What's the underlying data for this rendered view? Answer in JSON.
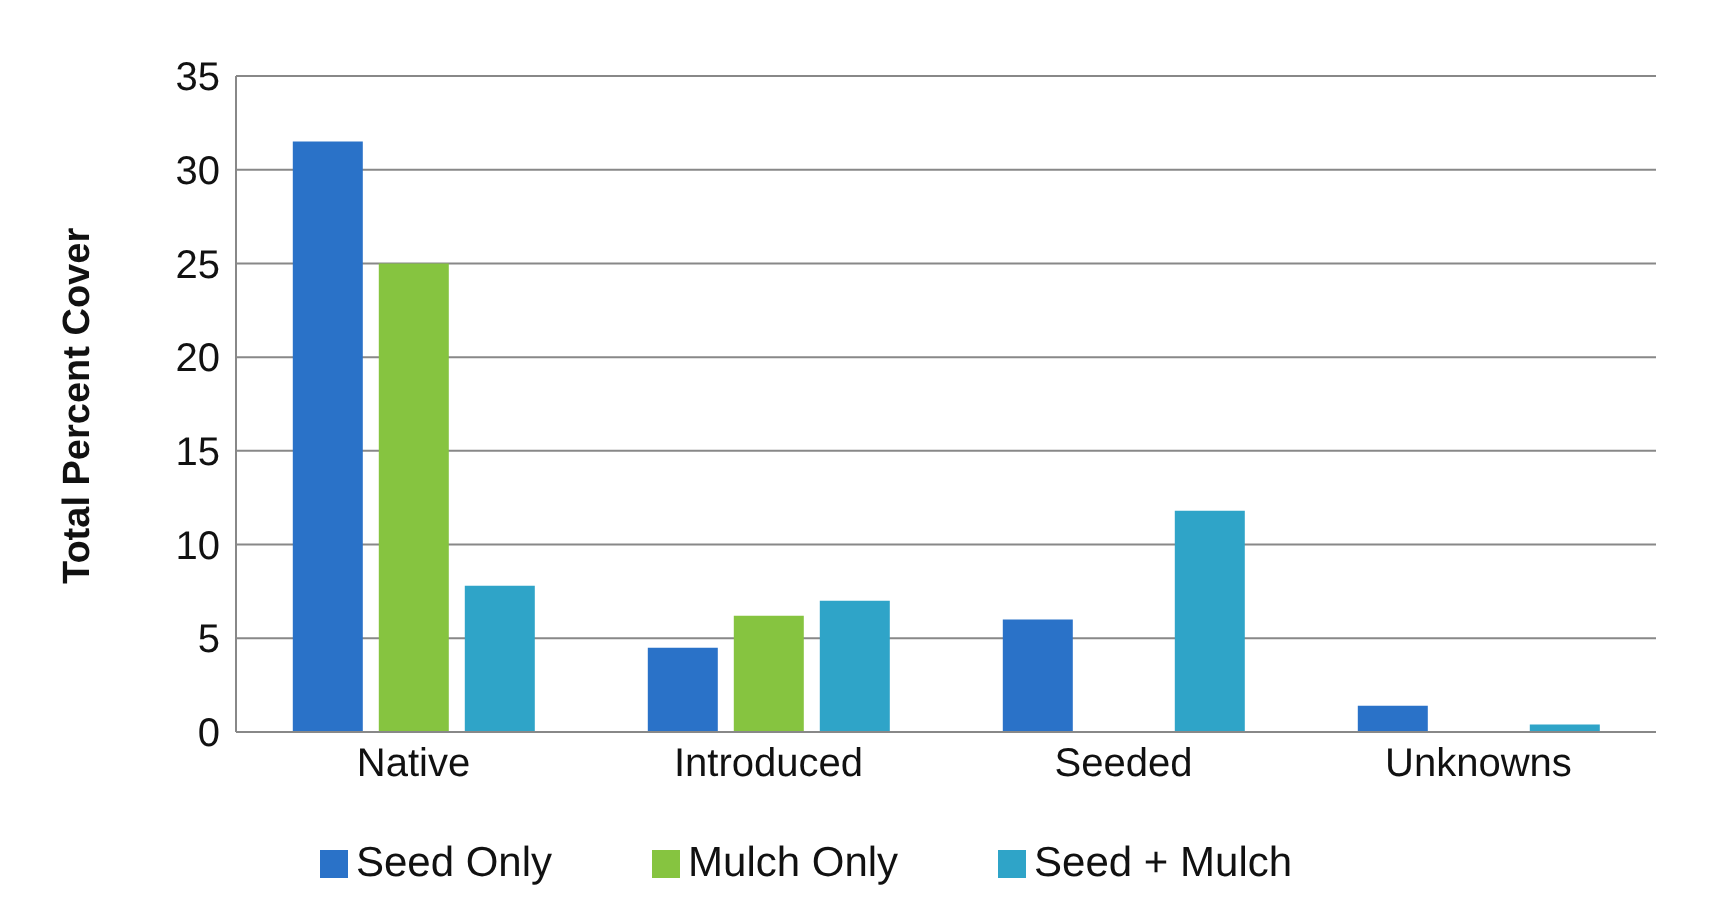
{
  "chart_data": {
    "type": "bar",
    "ylabel": "Total Percent Cover",
    "categories": [
      "Native",
      "Introduced",
      "Seeded",
      "Unknowns"
    ],
    "series": [
      {
        "name": "Seed Only",
        "color": "#2a72c8",
        "values": [
          31.5,
          4.5,
          6.0,
          1.4
        ]
      },
      {
        "name": "Mulch Only",
        "color": "#86c440",
        "values": [
          25,
          6.2,
          0,
          0
        ]
      },
      {
        "name": "Seed + Mulch",
        "color": "#2fa4c8",
        "values": [
          7.8,
          7.0,
          11.8,
          0.4
        ]
      }
    ],
    "ylim": [
      0,
      35
    ],
    "yticks": [
      0,
      5,
      10,
      15,
      20,
      25,
      30,
      35
    ],
    "grid": "y",
    "legend": "bottom"
  }
}
